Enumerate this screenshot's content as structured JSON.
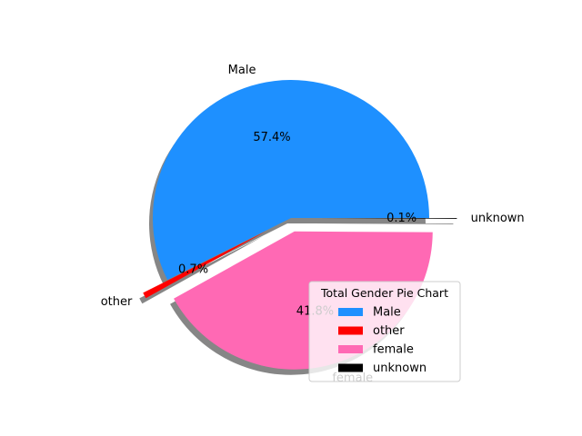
{
  "chart_data": {
    "type": "pie",
    "title": "",
    "slices": [
      {
        "label": "Male",
        "percent": 57.4,
        "pct_label": "57.4%",
        "color": "#1E90FF",
        "explode": 0.0
      },
      {
        "label": "other",
        "percent": 0.7,
        "pct_label": "0.7%",
        "color": "#FF0000",
        "explode": 0.2
      },
      {
        "label": "female",
        "percent": 41.8,
        "pct_label": "41.8%",
        "color": "#FF69B4",
        "explode": 0.1
      },
      {
        "label": "unknown",
        "percent": 0.1,
        "pct_label": "0.1%",
        "color": "#000000",
        "explode": 0.2
      }
    ],
    "shadow": true,
    "legend": {
      "title": "Total Gender Pie Chart",
      "placement": "lower-right"
    }
  }
}
